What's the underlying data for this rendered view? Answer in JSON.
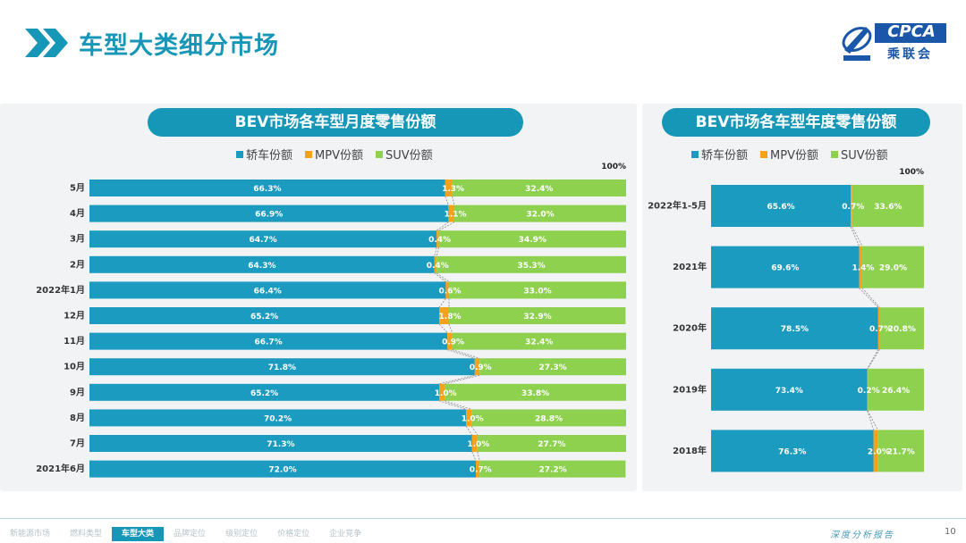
{
  "page": {
    "title": "车型大类细分市场",
    "page_number": "10",
    "report_label": "深度分析报告"
  },
  "logo": {
    "text": "CPCA",
    "subtext": "乘联会",
    "icon": "cpca-logo-icon"
  },
  "colors": {
    "sedan": "#1b9bc0",
    "mpv": "#f6a11a",
    "suv": "#8ed14f",
    "accent": "#1797b7",
    "panel": "#f1f3f5"
  },
  "legend": [
    "轿车份额",
    "MPV份额",
    "SUV份额"
  ],
  "chart_data": [
    {
      "type": "bar",
      "stacked": "horizontal-100%",
      "title": "BEV市场各车型月度零售份额",
      "top_label": "100%",
      "categories": [
        "5月",
        "4月",
        "3月",
        "2月",
        "2022年1月",
        "12月",
        "11月",
        "10月",
        "9月",
        "8月",
        "7月",
        "2021年6月"
      ],
      "series": [
        {
          "name": "轿车份额",
          "values": [
            66.3,
            66.9,
            64.7,
            64.3,
            66.4,
            65.2,
            66.7,
            71.8,
            65.2,
            70.2,
            71.3,
            72.0
          ]
        },
        {
          "name": "MPV份额",
          "values": [
            1.3,
            1.1,
            0.4,
            0.4,
            0.6,
            1.8,
            0.9,
            0.9,
            1.0,
            1.0,
            1.0,
            0.7
          ]
        },
        {
          "name": "SUV份额",
          "values": [
            32.4,
            32.0,
            34.9,
            35.3,
            33.0,
            32.9,
            32.4,
            27.3,
            33.8,
            28.8,
            27.7,
            27.2
          ]
        }
      ],
      "labels": [
        [
          "66.3%",
          "66.9%",
          "64.7%",
          "64.3%",
          "66.4%",
          "65.2%",
          "66.7%",
          "71.8%",
          "65.2%",
          "70.2%",
          "71.3%",
          "72.0%"
        ],
        [
          "1.3%",
          "1.1%",
          "0.4%",
          "0.4%",
          "0.6%",
          "1.8%",
          "0.9%",
          "0.9%",
          "1.0%",
          "1.0%",
          "1.0%",
          "0.7%"
        ],
        [
          "32.4%",
          "32.0%",
          "34.9%",
          "35.3%",
          "33.0%",
          "32.9%",
          "32.4%",
          "27.3%",
          "33.8%",
          "28.8%",
          "27.7%",
          "27.2%"
        ]
      ],
      "xlim": [
        0,
        100
      ],
      "legend_position": "top"
    },
    {
      "type": "bar",
      "stacked": "horizontal-100%",
      "title": "BEV市场各车型年度零售份额",
      "top_label": "100%",
      "categories": [
        "2022年1-5月",
        "2021年",
        "2020年",
        "2019年",
        "2018年"
      ],
      "series": [
        {
          "name": "轿车份额",
          "values": [
            65.6,
            69.6,
            78.5,
            73.4,
            76.3
          ]
        },
        {
          "name": "MPV份额",
          "values": [
            0.7,
            1.4,
            0.7,
            0.2,
            2.0
          ]
        },
        {
          "name": "SUV份额",
          "values": [
            33.6,
            29.0,
            20.8,
            26.4,
            21.7
          ]
        }
      ],
      "labels": [
        [
          "65.6%",
          "69.6%",
          "78.5%",
          "73.4%",
          "76.3%"
        ],
        [
          "0.7%",
          "1.4%",
          "0.7%",
          "0.2%",
          "2.0%"
        ],
        [
          "33.6%",
          "29.0%",
          "20.8%",
          "26.4%",
          "21.7%"
        ]
      ],
      "xlim": [
        0,
        100
      ],
      "legend_position": "top"
    }
  ],
  "footer": {
    "nav": [
      "新能源市场",
      "燃料类型",
      "车型大类",
      "品牌定位",
      "级别定位",
      "价格定位",
      "企业竞争"
    ],
    "active": "车型大类"
  }
}
